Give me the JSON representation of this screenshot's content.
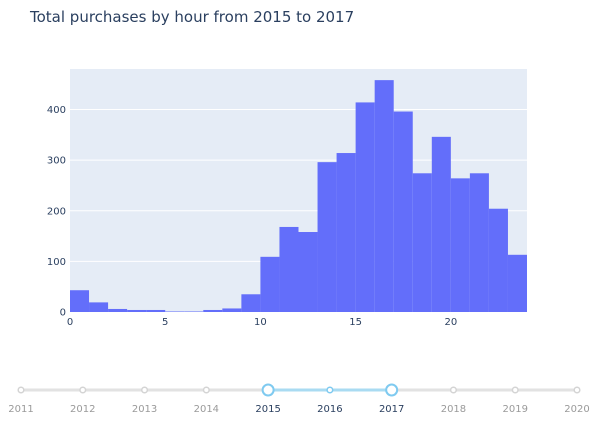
{
  "title": "Total purchases by hour from 2015 to 2017",
  "colors": {
    "bar": "#636efa",
    "plot_bg": "#e5ecf6",
    "grid": "#ffffff",
    "slider_track": "#e2e2e2",
    "slider_active": "#a9dbf2",
    "slider_handle": "#7fcaf0",
    "text": "#2a3f5f",
    "muted_text": "#9a9a9a"
  },
  "chart_data": {
    "type": "bar",
    "xlabel": "",
    "ylabel": "",
    "xlim": [
      0,
      24
    ],
    "ylim": [
      0,
      480
    ],
    "x_ticks": [
      0,
      5,
      10,
      15,
      20
    ],
    "y_ticks": [
      0,
      100,
      200,
      300,
      400
    ],
    "grid": true,
    "bins": [
      0,
      1,
      2,
      3,
      4,
      5,
      6,
      7,
      8,
      9,
      10,
      11,
      12,
      13,
      14,
      15,
      16,
      17,
      18,
      19,
      20,
      21,
      22,
      23
    ],
    "values": [
      43,
      19,
      6,
      4,
      4,
      1,
      1,
      4,
      7,
      35,
      109,
      168,
      158,
      296,
      314,
      414,
      458,
      396,
      274,
      346,
      264,
      274,
      204,
      113
    ]
  },
  "slider": {
    "years": [
      "2011",
      "2012",
      "2013",
      "2014",
      "2015",
      "2016",
      "2017",
      "2018",
      "2019",
      "2020"
    ],
    "range_start": "2015",
    "range_end": "2017"
  }
}
